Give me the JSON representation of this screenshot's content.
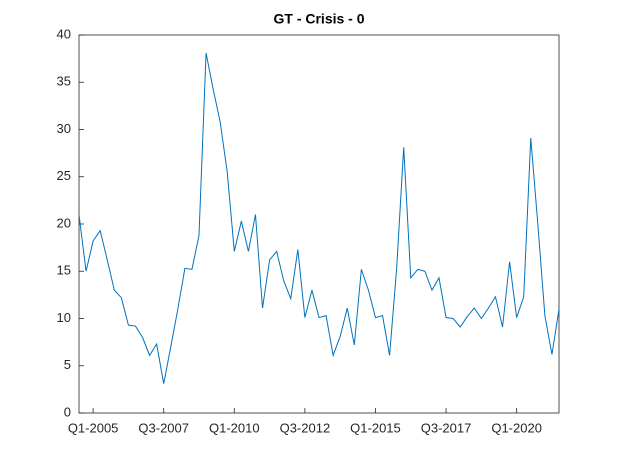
{
  "chart_data": {
    "type": "line",
    "title": "GT - Crisis - 0",
    "categories": [
      null,
      null,
      "Q1-2005",
      null,
      null,
      null,
      null,
      null,
      null,
      null,
      null,
      null,
      "Q3-2007",
      null,
      null,
      null,
      null,
      null,
      null,
      null,
      null,
      null,
      "Q1-2010",
      null,
      null,
      null,
      null,
      null,
      null,
      null,
      null,
      null,
      "Q3-2012",
      null,
      null,
      null,
      null,
      null,
      null,
      null,
      null,
      null,
      "Q1-2015",
      null,
      null,
      null,
      null,
      null,
      null,
      null,
      null,
      null,
      "Q3-2017",
      null,
      null,
      null,
      null,
      null,
      null,
      null,
      null,
      null,
      "Q1-2020",
      null,
      null,
      null,
      null,
      null,
      null
    ],
    "series": [
      {
        "color": "#0072bd",
        "values": [
          21,
          15,
          18.2,
          19.3,
          16.2,
          13,
          12.2,
          9.3,
          9.2,
          8,
          6.1,
          7.3,
          3.1,
          7,
          11,
          15.3,
          15.2,
          18.8,
          38.1,
          34.3,
          30.8,
          25.5,
          17.1,
          20.3,
          17.1,
          21,
          11.1,
          16.2,
          17.1,
          14,
          12.1,
          17.3,
          10.1,
          13,
          10.1,
          10.3,
          6.1,
          8.1,
          11.1,
          7.2,
          15.2,
          13,
          10.1,
          10.3,
          6.1,
          15.3,
          28.1,
          14.3,
          15.2,
          15,
          13,
          14.3,
          10.1,
          10,
          9.1,
          10.2,
          11.1,
          10,
          11.1,
          12.3,
          9.1,
          16,
          10.1,
          12.3,
          29.1,
          20,
          10.3,
          6.2,
          11
        ]
      }
    ],
    "ylim": [
      0,
      40
    ],
    "yticks": [
      0,
      5,
      10,
      15,
      20,
      25,
      30,
      35,
      40
    ]
  }
}
